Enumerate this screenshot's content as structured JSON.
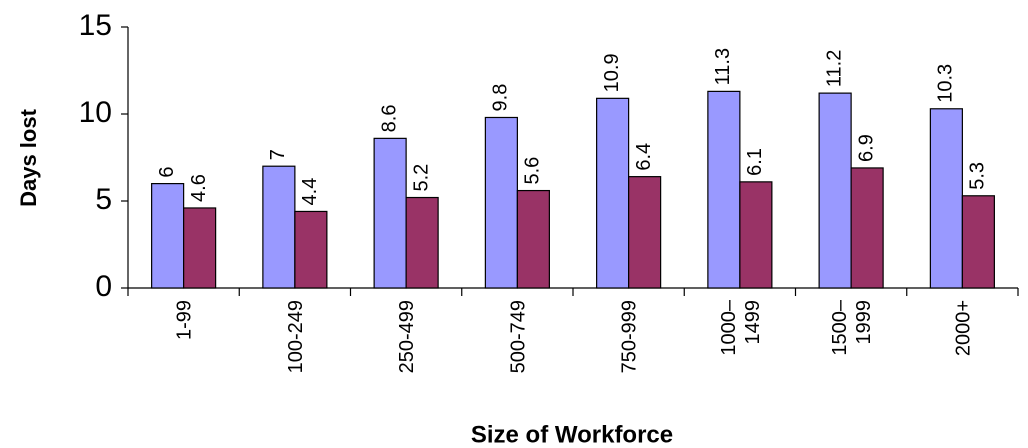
{
  "chart_data": {
    "type": "bar",
    "x_label": "Size of Workforce",
    "y_label": "Days lost",
    "categories": [
      "1-99",
      "100-249",
      "250-499",
      "500-749",
      "750-999",
      "1000–\n1499",
      "1500–\n1999",
      "2000+"
    ],
    "series": [
      {
        "color": "#9999ff",
        "values": [
          6,
          7,
          8.6,
          9.8,
          10.9,
          11.3,
          11.2,
          10.3
        ]
      },
      {
        "color": "#993366",
        "values": [
          4.6,
          4.4,
          5.2,
          5.6,
          6.4,
          6.1,
          6.9,
          5.3
        ]
      }
    ],
    "ylim": [
      0,
      15
    ],
    "yticks": [
      0,
      5,
      10,
      15
    ],
    "grid": false
  }
}
